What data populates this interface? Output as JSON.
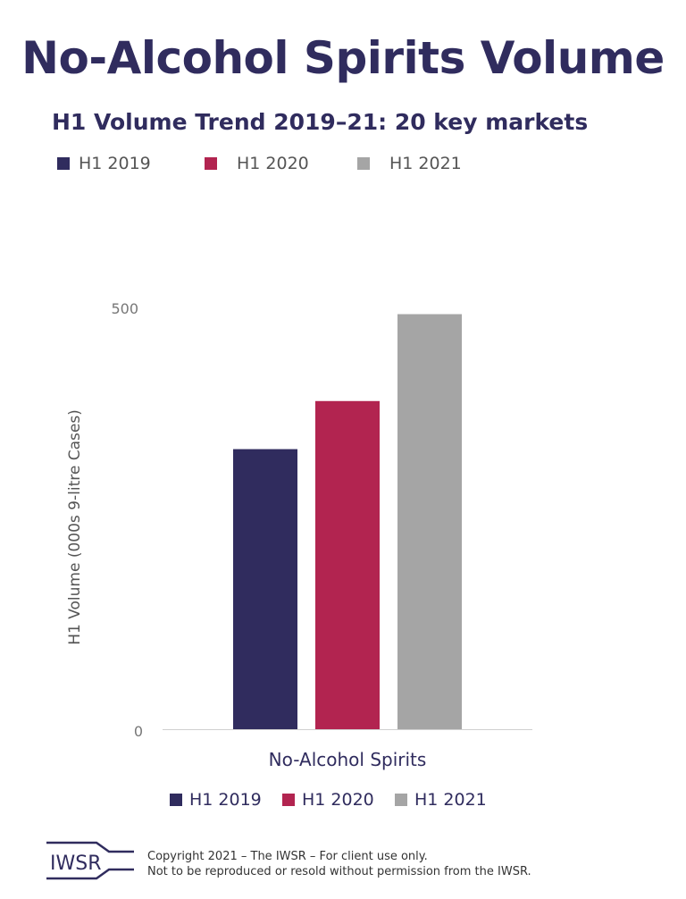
{
  "header": {
    "title": "No-Alcohol Spirits Volume",
    "subtitle": "H1 Volume Trend 2019–21: 20 key markets"
  },
  "chart_data": {
    "type": "bar",
    "title": "No-Alcohol Spirits Volume",
    "subtitle": "H1 Volume Trend 2019–21: 20 key markets",
    "categories": [
      "No-Alcohol Spirits"
    ],
    "series": [
      {
        "name": "H1 2019",
        "values": [
          332
        ],
        "color": "#302c5e"
      },
      {
        "name": "H1 2020",
        "values": [
          389
        ],
        "color": "#b22450"
      },
      {
        "name": "H1 2021",
        "values": [
          492
        ],
        "color": "#a5a5a5"
      }
    ],
    "xlabel": "No-Alcohol Spirits",
    "ylabel": "H1 Volume (000s 9-litre Cases)",
    "ylim": [
      0,
      500
    ],
    "yticks": [
      "0",
      "500"
    ],
    "grid": false,
    "legend": [
      "top",
      "bottom"
    ]
  },
  "legend": {
    "items": [
      "H1 2019",
      "H1 2020",
      "H1 2021"
    ]
  },
  "footer": {
    "logo_text": "IWSR",
    "line1": "Copyright 2021 – The IWSR – For client use only.",
    "line2": "Not to be reproduced or resold without permission from the IWSR."
  }
}
